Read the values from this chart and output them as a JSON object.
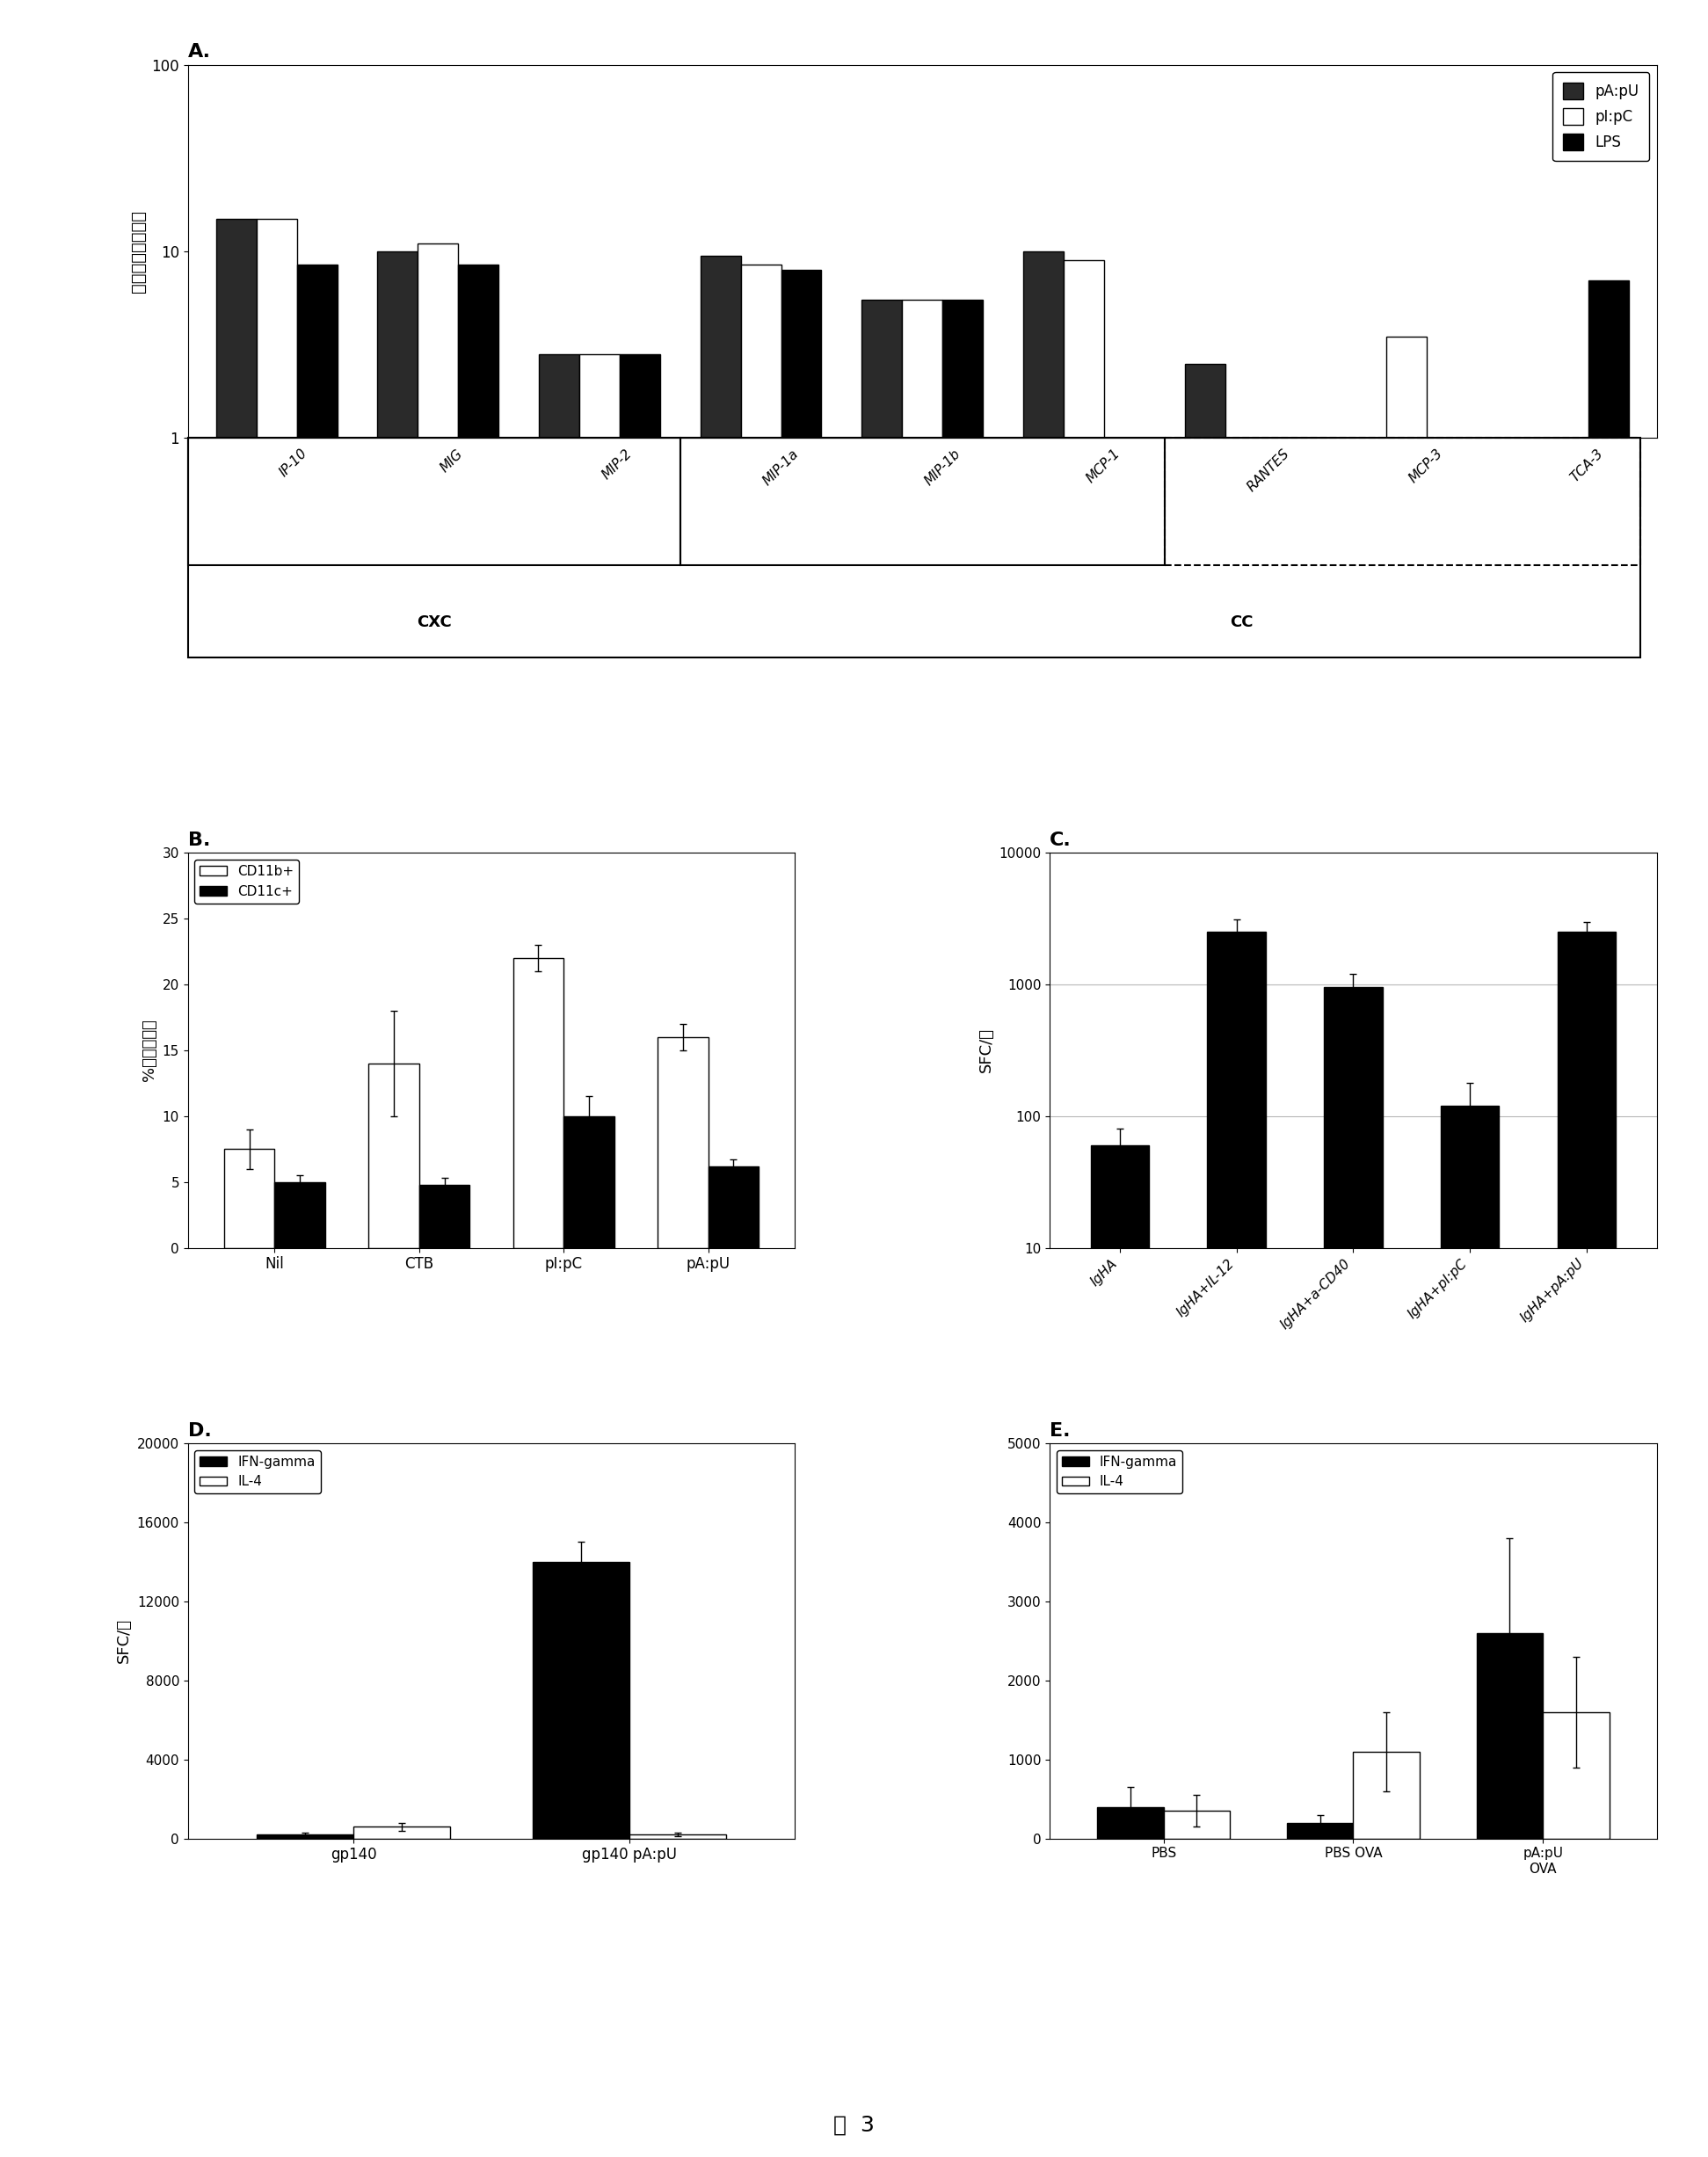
{
  "panel_A": {
    "title": "A.",
    "ylabel": "表达（增加倍数）",
    "ylim": [
      1,
      100
    ],
    "categories": [
      "IP-10",
      "MIG",
      "MIP-2",
      "MIP-1a",
      "MIP-1b",
      "MCP-1",
      "RANTES",
      "MCP-3",
      "TCA-3"
    ],
    "series": {
      "pA:pU": [
        15,
        10,
        2.8,
        9.5,
        5.5,
        10,
        2.5,
        0,
        0
      ],
      "pI:pC": [
        15,
        11,
        2.8,
        8.5,
        5.5,
        9.0,
        0,
        3.5,
        0
      ],
      "LPS": [
        8.5,
        8.5,
        2.8,
        8.0,
        5.5,
        0,
        0,
        0,
        7.0
      ]
    },
    "colors": {
      "pA:pU": "#2a2a2a",
      "pI:pC": "#ffffff",
      "LPS": "#000000"
    },
    "edgecolors": {
      "pA:pU": "#000000",
      "pI:pC": "#000000",
      "LPS": "#000000"
    }
  },
  "panel_B": {
    "title": "B.",
    "ylabel": "%染色的细胞",
    "ylim": [
      0,
      30
    ],
    "yticks": [
      0,
      5,
      10,
      15,
      20,
      25,
      30
    ],
    "categories": [
      "Nil",
      "CTB",
      "pI:pC",
      "pA:pU"
    ],
    "series": {
      "CD11b+": [
        7.5,
        14,
        22,
        16
      ],
      "CD11c+": [
        5.0,
        4.8,
        10,
        6.2
      ]
    },
    "errors": {
      "CD11b+": [
        1.5,
        4.0,
        1.0,
        1.0
      ],
      "CD11c+": [
        0.5,
        0.5,
        1.5,
        0.5
      ]
    },
    "colors": {
      "CD11b+": "#ffffff",
      "CD11c+": "#000000"
    },
    "edgecolors": {
      "CD11b+": "#000000",
      "CD11c+": "#000000"
    }
  },
  "panel_C": {
    "title": "C.",
    "ylabel": "SFC/脾",
    "ylim": [
      10,
      10000
    ],
    "categories": [
      "IgHA",
      "IgHA+IL-12",
      "IgHA+a-CD40",
      "IgHA+pI:pC",
      "IgHA+pA:pU"
    ],
    "values": [
      60,
      2500,
      950,
      120,
      2500
    ],
    "errors": [
      20,
      600,
      250,
      60,
      500
    ],
    "color": "#000000",
    "edgecolor": "#000000"
  },
  "panel_D": {
    "title": "D.",
    "ylabel": "SFC/脾",
    "ylim": [
      0,
      20000
    ],
    "yticks": [
      0,
      4000,
      8000,
      12000,
      16000,
      20000
    ],
    "categories": [
      "gp140",
      "gp140 pA:pU"
    ],
    "series": {
      "IFN-gamma": [
        200,
        14000
      ],
      "IL-4": [
        600,
        200
      ]
    },
    "errors": {
      "IFN-gamma": [
        80,
        1000
      ],
      "IL-4": [
        200,
        100
      ]
    },
    "colors": {
      "IFN-gamma": "#000000",
      "IL-4": "#ffffff"
    },
    "edgecolors": {
      "IFN-gamma": "#000000",
      "IL-4": "#000000"
    }
  },
  "panel_E": {
    "title": "E.",
    "ylim": [
      0,
      5000
    ],
    "yticks": [
      0,
      1000,
      2000,
      3000,
      4000,
      5000
    ],
    "categories": [
      "PBS",
      "PBS OVA",
      "pA:pU\nOVA"
    ],
    "series": {
      "IFN-gamma": [
        400,
        200,
        2600
      ],
      "IL-4": [
        350,
        1100,
        1600
      ]
    },
    "errors": {
      "IFN-gamma": [
        250,
        100,
        1200
      ],
      "IL-4": [
        200,
        500,
        700
      ]
    },
    "colors": {
      "IFN-gamma": "#000000",
      "IL-4": "#ffffff"
    },
    "edgecolors": {
      "IFN-gamma": "#000000",
      "IL-4": "#000000"
    }
  },
  "figure_label": "图  3",
  "bg_color": "#ffffff"
}
